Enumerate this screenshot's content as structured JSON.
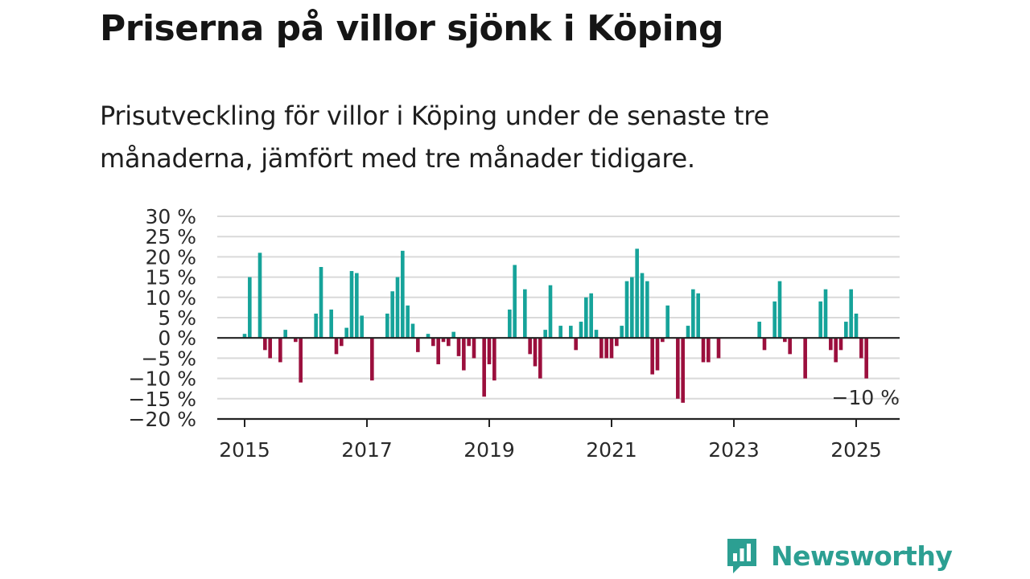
{
  "header": {
    "title": "Priserna på villor sjönk i Köping",
    "subtitle": "Prisutveckling för villor i Köping under de senaste tre månaderna, jämfört med tre månader tidigare."
  },
  "brand": {
    "name": "Newsworthy"
  },
  "colors": {
    "positive": "#16a39a",
    "negative": "#9b0f3d",
    "grid": "#d9d9d9",
    "axis": "#222222",
    "logo": "#2c9f92"
  },
  "chart_data": {
    "type": "bar",
    "title": "",
    "xlabel": "",
    "ylabel": "",
    "ylim": [
      -20,
      30
    ],
    "y_ticks": [
      30,
      25,
      20,
      15,
      10,
      5,
      0,
      -5,
      -10,
      -15,
      -20
    ],
    "y_tick_labels": [
      "30 %",
      "25 %",
      "20 %",
      "15 %",
      "10 %",
      "5 %",
      "0 %",
      "−5 %",
      "−10 %",
      "−15 %",
      "−20 %"
    ],
    "x_ticks": [
      2015,
      2017,
      2019,
      2021,
      2023,
      2025
    ],
    "x_tick_labels": [
      "2015",
      "2017",
      "2019",
      "2021",
      "2023",
      "2025"
    ],
    "grid": "horizontal",
    "annotation": {
      "text": "−10 %"
    },
    "series": [
      {
        "values": [
          {
            "date": "2015-01",
            "value": 1
          },
          {
            "date": "2015-02",
            "value": 15
          },
          {
            "date": "2015-04",
            "value": 21
          },
          {
            "date": "2015-05",
            "value": -3
          },
          {
            "date": "2015-06",
            "value": -5
          },
          {
            "date": "2015-08",
            "value": -6
          },
          {
            "date": "2015-09",
            "value": 2
          },
          {
            "date": "2015-11",
            "value": -1
          },
          {
            "date": "2015-12",
            "value": -11
          },
          {
            "date": "2016-03",
            "value": 6
          },
          {
            "date": "2016-04",
            "value": 17.5
          },
          {
            "date": "2016-06",
            "value": 7
          },
          {
            "date": "2016-07",
            "value": -4
          },
          {
            "date": "2016-08",
            "value": -2
          },
          {
            "date": "2016-09",
            "value": 2.5
          },
          {
            "date": "2016-10",
            "value": 16.5
          },
          {
            "date": "2016-11",
            "value": 16
          },
          {
            "date": "2016-12",
            "value": 5.5
          },
          {
            "date": "2017-02",
            "value": -10.5
          },
          {
            "date": "2017-05",
            "value": 6
          },
          {
            "date": "2017-06",
            "value": 11.5
          },
          {
            "date": "2017-07",
            "value": 15
          },
          {
            "date": "2017-08",
            "value": 21.5
          },
          {
            "date": "2017-09",
            "value": 8
          },
          {
            "date": "2017-10",
            "value": 3.5
          },
          {
            "date": "2017-11",
            "value": -3.5
          },
          {
            "date": "2018-01",
            "value": 1
          },
          {
            "date": "2018-02",
            "value": -2
          },
          {
            "date": "2018-03",
            "value": -6.5
          },
          {
            "date": "2018-04",
            "value": -1
          },
          {
            "date": "2018-05",
            "value": -2
          },
          {
            "date": "2018-06",
            "value": 1.5
          },
          {
            "date": "2018-07",
            "value": -4.5
          },
          {
            "date": "2018-08",
            "value": -8
          },
          {
            "date": "2018-09",
            "value": -2
          },
          {
            "date": "2018-10",
            "value": -5
          },
          {
            "date": "2018-12",
            "value": -14.5
          },
          {
            "date": "2019-01",
            "value": -6.5
          },
          {
            "date": "2019-02",
            "value": -10.5
          },
          {
            "date": "2019-05",
            "value": 7
          },
          {
            "date": "2019-06",
            "value": 18
          },
          {
            "date": "2019-08",
            "value": 12
          },
          {
            "date": "2019-09",
            "value": -4
          },
          {
            "date": "2019-10",
            "value": -7
          },
          {
            "date": "2019-11",
            "value": -10
          },
          {
            "date": "2019-12",
            "value": 2
          },
          {
            "date": "2020-01",
            "value": 13
          },
          {
            "date": "2020-03",
            "value": 3
          },
          {
            "date": "2020-05",
            "value": 3
          },
          {
            "date": "2020-06",
            "value": -3
          },
          {
            "date": "2020-07",
            "value": 4
          },
          {
            "date": "2020-08",
            "value": 10
          },
          {
            "date": "2020-09",
            "value": 11
          },
          {
            "date": "2020-10",
            "value": 2
          },
          {
            "date": "2020-11",
            "value": -5
          },
          {
            "date": "2020-12",
            "value": -5
          },
          {
            "date": "2021-01",
            "value": -5
          },
          {
            "date": "2021-02",
            "value": -2
          },
          {
            "date": "2021-03",
            "value": 3
          },
          {
            "date": "2021-04",
            "value": 14
          },
          {
            "date": "2021-05",
            "value": 15
          },
          {
            "date": "2021-06",
            "value": 22
          },
          {
            "date": "2021-07",
            "value": 16
          },
          {
            "date": "2021-08",
            "value": 14
          },
          {
            "date": "2021-09",
            "value": -9
          },
          {
            "date": "2021-10",
            "value": -8
          },
          {
            "date": "2021-11",
            "value": -1
          },
          {
            "date": "2021-12",
            "value": 8
          },
          {
            "date": "2022-02",
            "value": -15
          },
          {
            "date": "2022-03",
            "value": -16
          },
          {
            "date": "2022-04",
            "value": 3
          },
          {
            "date": "2022-05",
            "value": 12
          },
          {
            "date": "2022-06",
            "value": 11
          },
          {
            "date": "2022-07",
            "value": -6
          },
          {
            "date": "2022-08",
            "value": -6
          },
          {
            "date": "2022-10",
            "value": -5
          },
          {
            "date": "2023-06",
            "value": 4
          },
          {
            "date": "2023-07",
            "value": -3
          },
          {
            "date": "2023-09",
            "value": 9
          },
          {
            "date": "2023-10",
            "value": 14
          },
          {
            "date": "2023-11",
            "value": -1
          },
          {
            "date": "2023-12",
            "value": -4
          },
          {
            "date": "2024-03",
            "value": -10
          },
          {
            "date": "2024-06",
            "value": 9
          },
          {
            "date": "2024-07",
            "value": 12
          },
          {
            "date": "2024-08",
            "value": -3
          },
          {
            "date": "2024-09",
            "value": -6
          },
          {
            "date": "2024-10",
            "value": -3
          },
          {
            "date": "2024-11",
            "value": 4
          },
          {
            "date": "2024-12",
            "value": 12
          },
          {
            "date": "2025-01",
            "value": 6
          },
          {
            "date": "2025-02",
            "value": -5
          },
          {
            "date": "2025-03",
            "value": -10
          }
        ]
      }
    ]
  }
}
